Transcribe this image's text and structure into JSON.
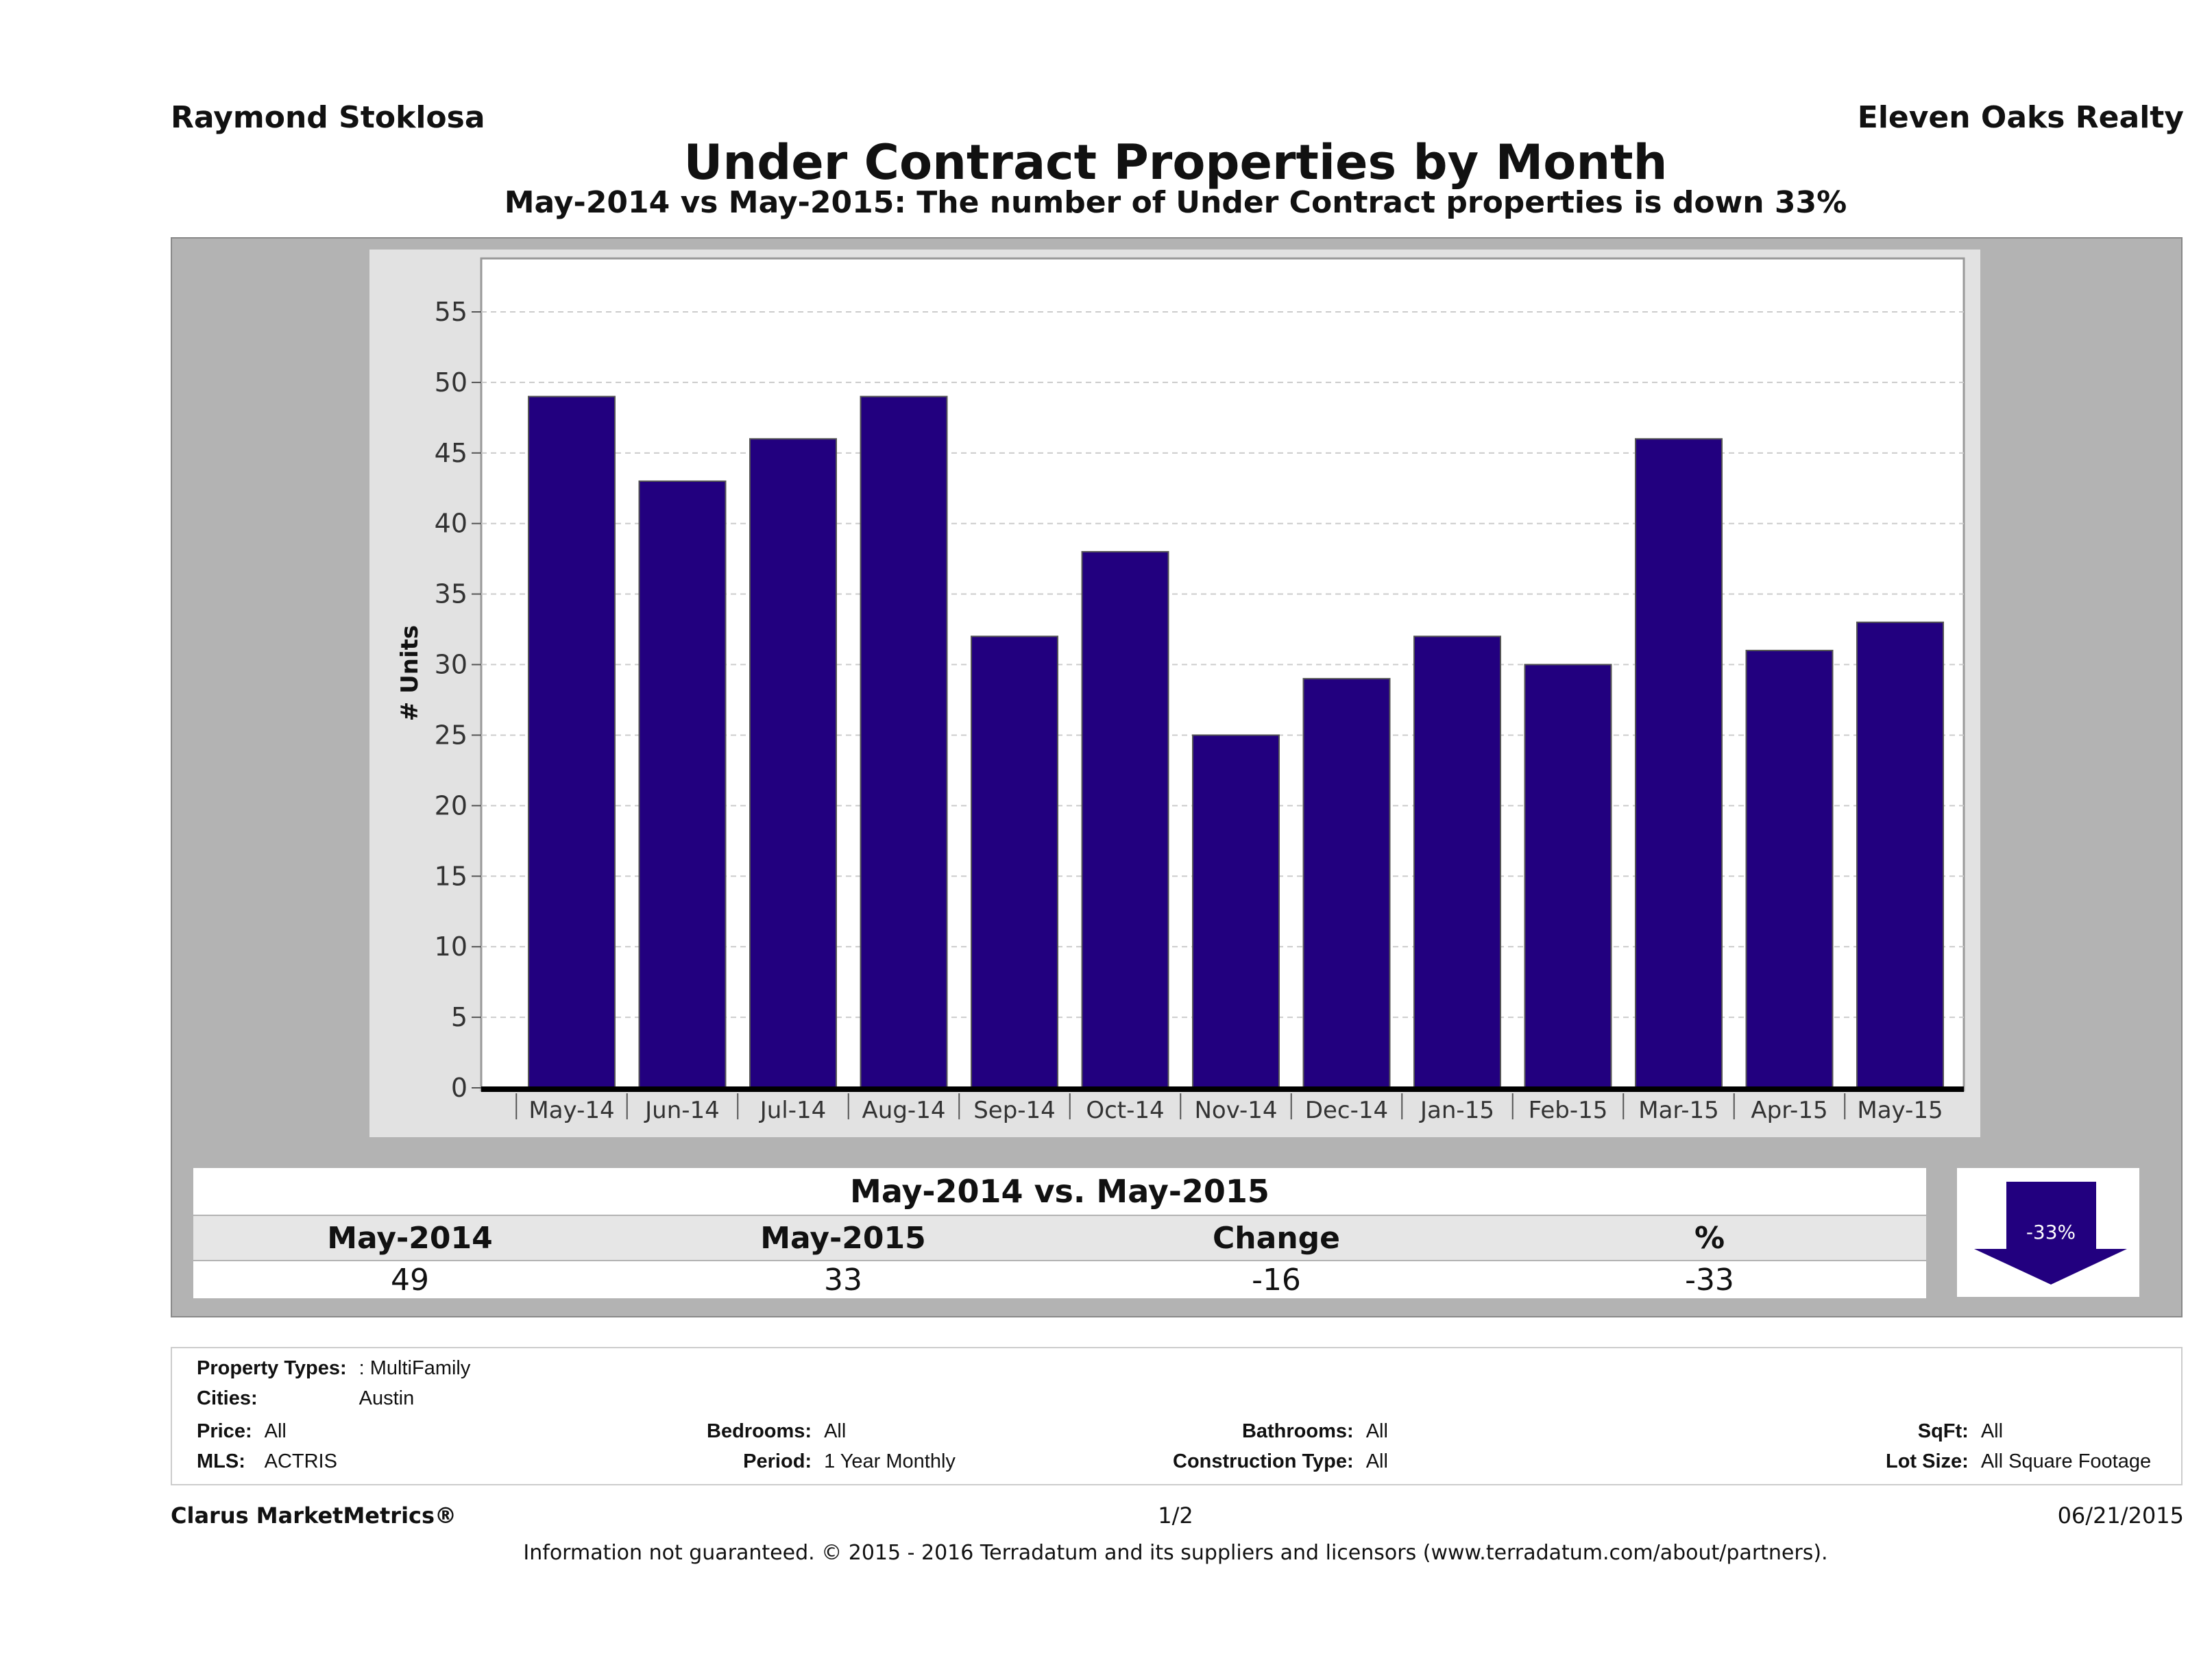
{
  "header": {
    "agent": "Raymond Stoklosa",
    "company": "Eleven Oaks Realty",
    "title": "Under Contract Properties by Month",
    "subtitle": "May-2014 vs May-2015: The number of Under Contract  properties is down 33%"
  },
  "chart_data": {
    "type": "bar",
    "categories": [
      "May-14",
      "Jun-14",
      "Jul-14",
      "Aug-14",
      "Sep-14",
      "Oct-14",
      "Nov-14",
      "Dec-14",
      "Jan-15",
      "Feb-15",
      "Mar-15",
      "Apr-15",
      "May-15"
    ],
    "values": [
      49,
      43,
      46,
      49,
      32,
      38,
      25,
      29,
      32,
      30,
      46,
      31,
      33
    ],
    "ylabel": "# Units",
    "ylim": [
      0,
      58
    ],
    "yticks": [
      0,
      5,
      10,
      15,
      20,
      25,
      30,
      35,
      40,
      45,
      50,
      55
    ],
    "grid": true,
    "bar_color": "#22007f"
  },
  "summary": {
    "title": "May-2014 vs. May-2015",
    "headers": [
      "May-2014",
      "May-2015",
      "Change",
      "%"
    ],
    "values": [
      "49",
      "33",
      "-16",
      "-33"
    ],
    "badge": "-33%",
    "badge_color": "#22007f"
  },
  "info": {
    "property_types_label": "Property Types:",
    "property_types": ": MultiFamily",
    "cities_label": "Cities:",
    "cities": "Austin",
    "price_label": "Price:",
    "price": "All",
    "bedrooms_label": "Bedrooms:",
    "bedrooms": "All",
    "bathrooms_label": "Bathrooms:",
    "bathrooms": "All",
    "sqft_label": "SqFt:",
    "sqft": "All",
    "mls_label": "MLS:",
    "mls": "ACTRIS",
    "period_label": "Period:",
    "period": "1 Year Monthly",
    "construction_label": "Construction Type:",
    "construction": "All",
    "lot_label": "Lot Size:",
    "lot": "All Square Footage"
  },
  "footer": {
    "brand": "Clarus MarketMetrics®",
    "page": "1/2",
    "date": "06/21/2015",
    "disclaimer": "Information not guaranteed. © 2015 - 2016 Terradatum and its suppliers and licensors (www.terradatum.com/about/partners)."
  }
}
